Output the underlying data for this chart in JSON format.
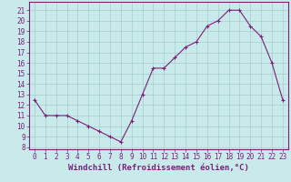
{
  "x": [
    0,
    1,
    2,
    3,
    4,
    5,
    6,
    7,
    8,
    9,
    10,
    11,
    12,
    13,
    14,
    15,
    16,
    17,
    18,
    19,
    20,
    21,
    22,
    23
  ],
  "y": [
    12.5,
    11.0,
    11.0,
    11.0,
    10.5,
    10.0,
    9.5,
    9.0,
    8.5,
    10.5,
    13.0,
    15.5,
    15.5,
    16.5,
    17.5,
    18.0,
    19.5,
    20.0,
    21.0,
    21.0,
    19.5,
    18.5,
    16.0,
    12.5
  ],
  "xlim": [
    -0.5,
    23.5
  ],
  "ylim": [
    7.8,
    21.8
  ],
  "yticks": [
    8,
    9,
    10,
    11,
    12,
    13,
    14,
    15,
    16,
    17,
    18,
    19,
    20,
    21
  ],
  "xticks": [
    0,
    1,
    2,
    3,
    4,
    5,
    6,
    7,
    8,
    9,
    10,
    11,
    12,
    13,
    14,
    15,
    16,
    17,
    18,
    19,
    20,
    21,
    22,
    23
  ],
  "xlabel": "Windchill (Refroidissement éolien,°C)",
  "line_color": "#7b1f7b",
  "marker_color": "#7b1f7b",
  "bg_color": "#c8eaea",
  "grid_color": "#a8cccc",
  "axis_color": "#7b1f7b",
  "tick_color": "#7b1f7b",
  "label_color": "#7b1f7b",
  "font_size_ticks": 5.5,
  "font_size_xlabel": 6.5
}
